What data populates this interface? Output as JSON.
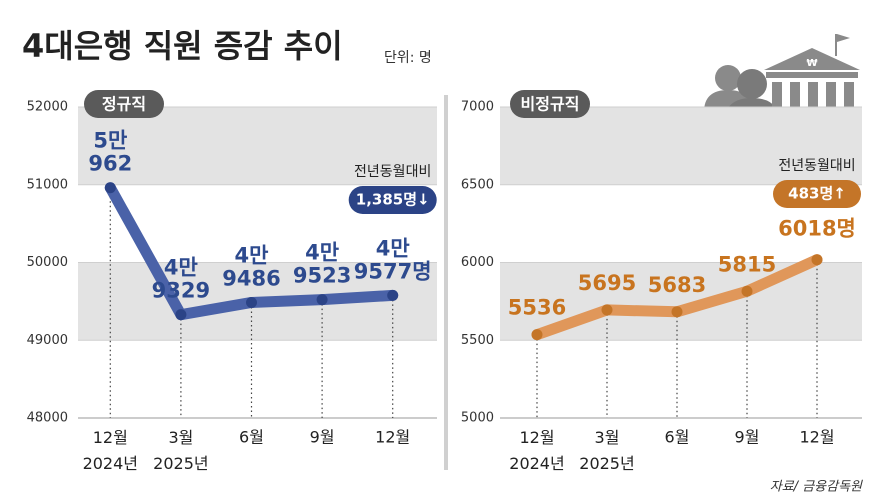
{
  "title": "4대은행 직원 증감 추이",
  "unit": "단위: 명",
  "source": "자료/ 금융감독원",
  "chart_data": [
    {
      "type": "line",
      "title": "정규직",
      "categories": [
        "12월\n2024년",
        "3월\n2025년",
        "6월",
        "9월",
        "12월"
      ],
      "values": [
        50962,
        49329,
        49486,
        49523,
        49577
      ],
      "value_labels": [
        "5만\n962",
        "4만\n9329",
        "4만\n9486",
        "4만\n9523",
        "4만\n9577명"
      ],
      "color": "#4a62a8",
      "marker_color": "#2b4386",
      "label_color": "#2d4a8e",
      "ylim": [
        48000,
        52000
      ],
      "yticks": [
        48000,
        49000,
        50000,
        51000,
        52000
      ],
      "annotations": [
        "전년동월대비",
        "1,385명↓"
      ]
    },
    {
      "type": "line",
      "title": "비정규직",
      "categories": [
        "12월\n2024년",
        "3월\n2025년",
        "6월",
        "9월",
        "12월"
      ],
      "values": [
        5536,
        5695,
        5683,
        5815,
        6018
      ],
      "value_labels": [
        "5536",
        "5695",
        "5683",
        "5815",
        "6018명"
      ],
      "color": "#e0975a",
      "marker_color": "#c47528",
      "label_color": "#c8741f",
      "ylim": [
        5000,
        7000
      ],
      "yticks": [
        5000,
        5500,
        6000,
        6500,
        7000
      ],
      "annotations": [
        "전년동월대비",
        "483명↑"
      ]
    }
  ]
}
